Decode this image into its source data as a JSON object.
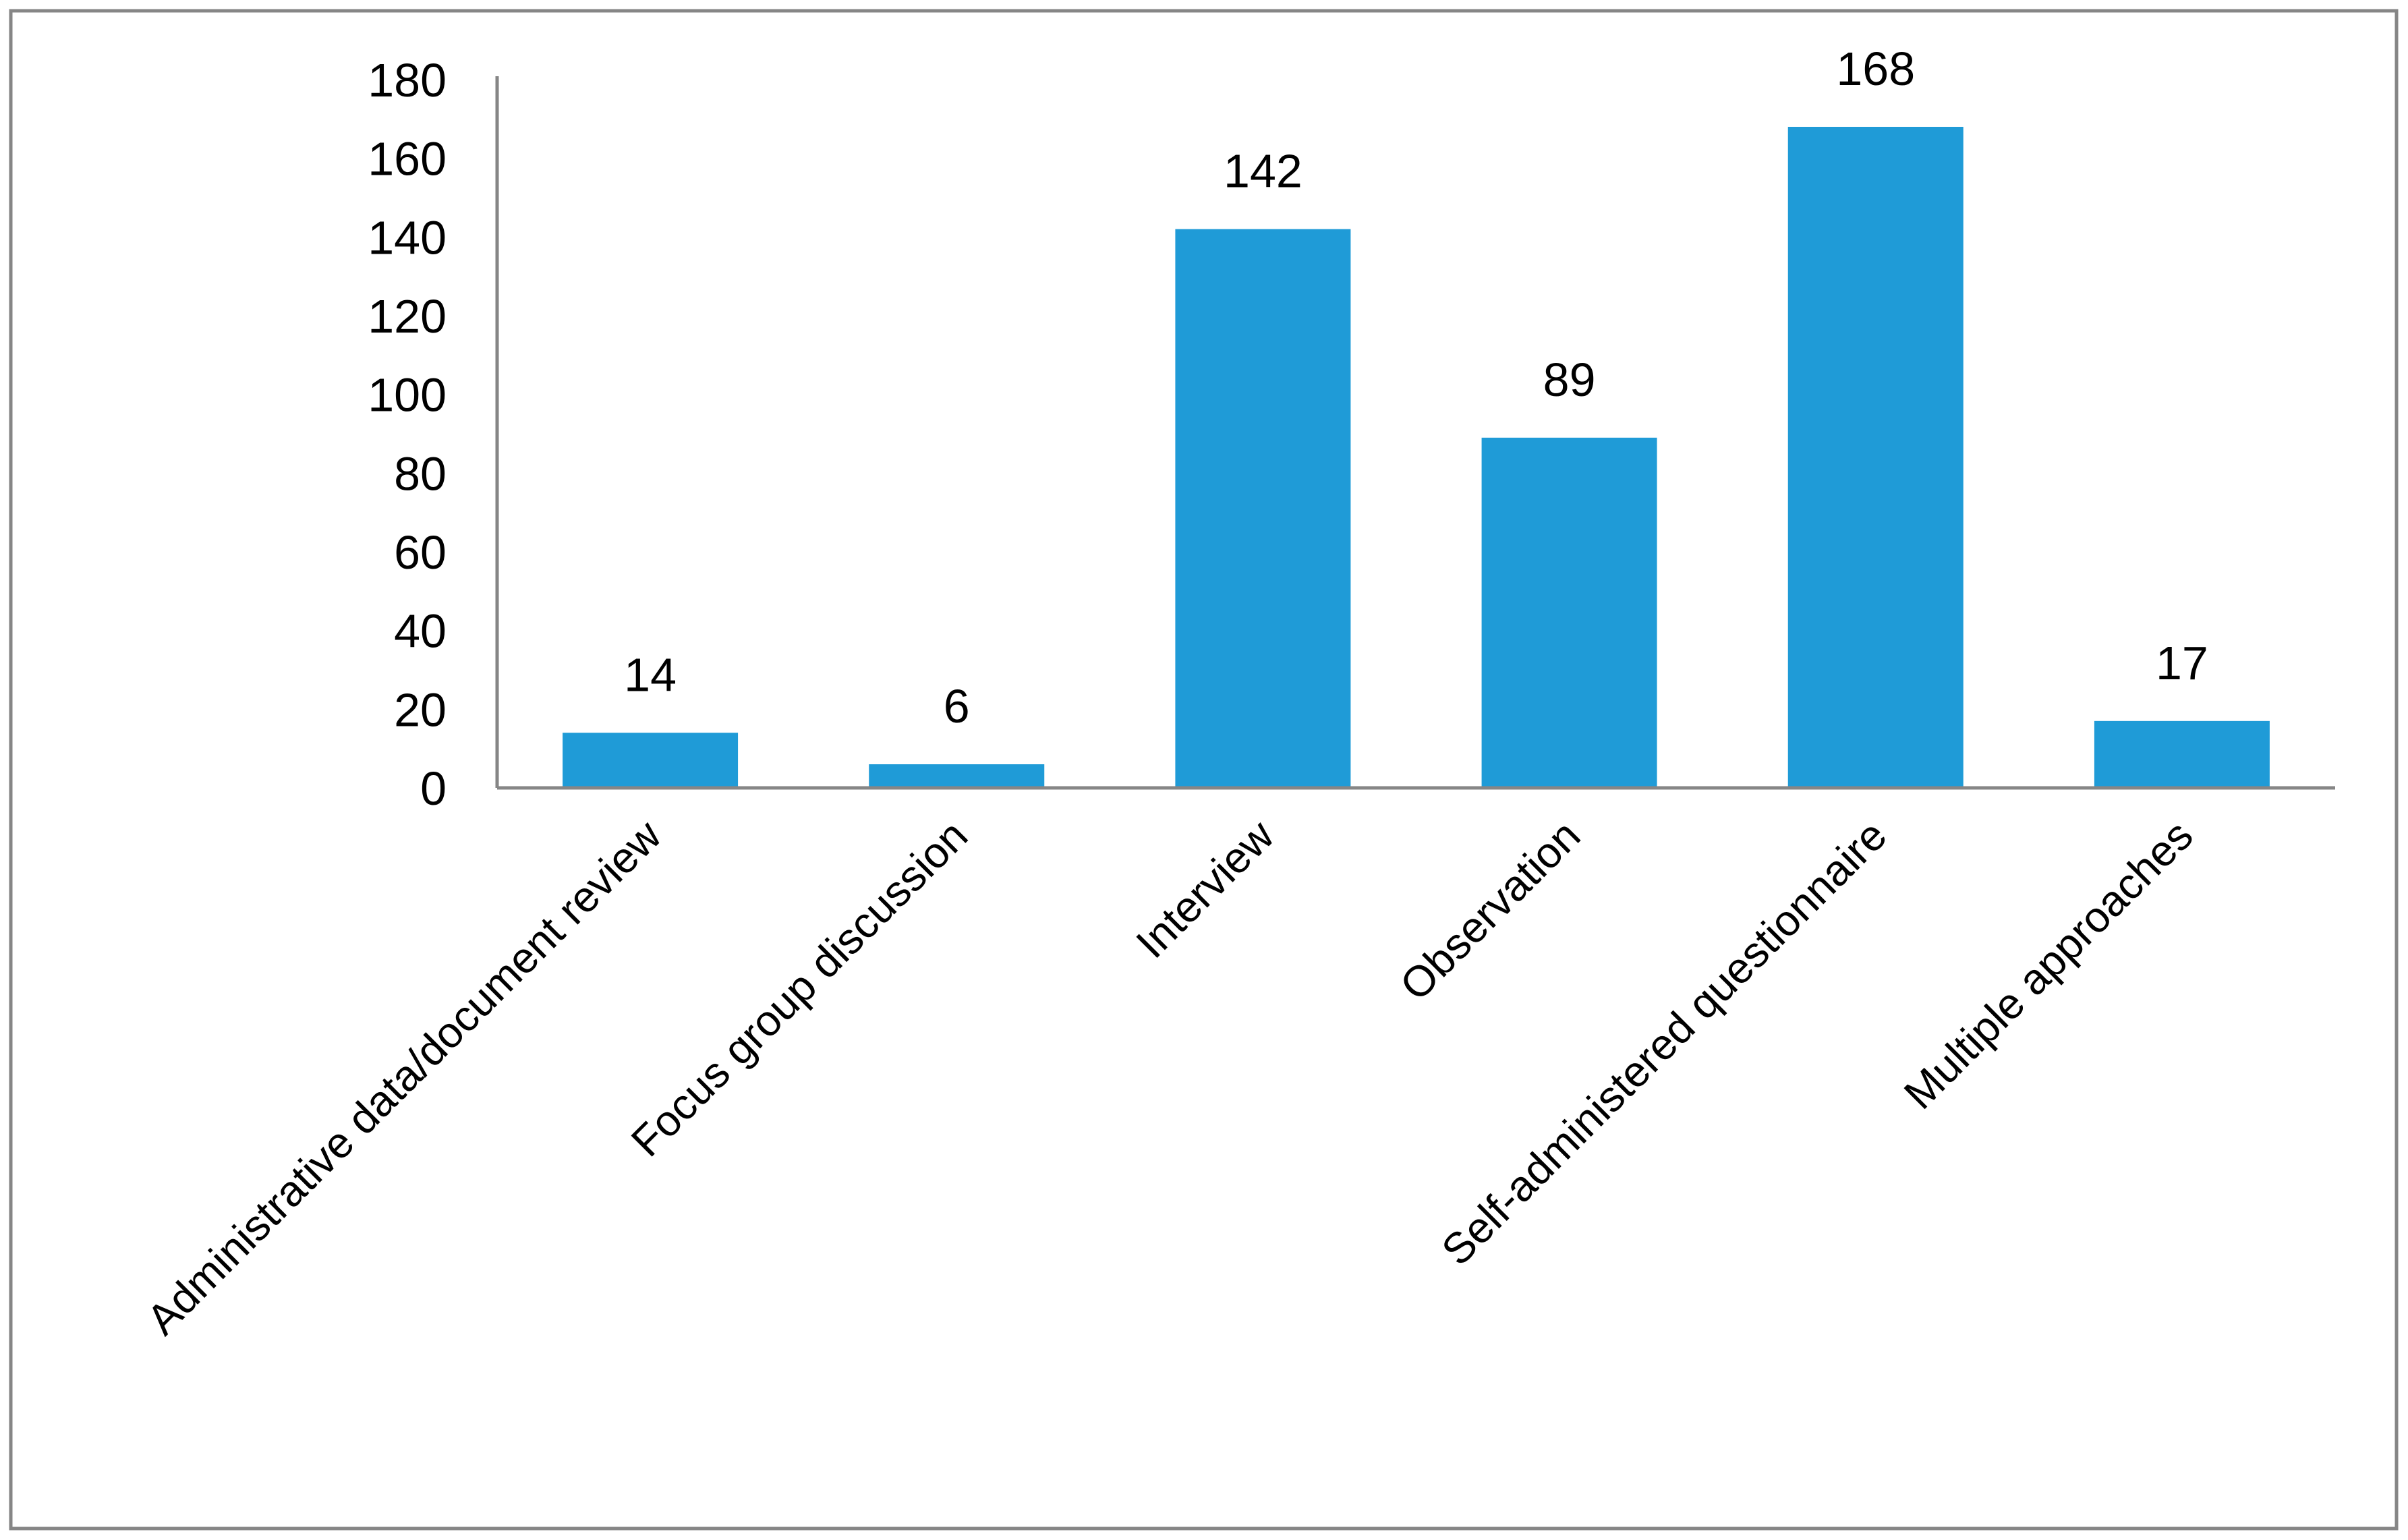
{
  "chart_data": {
    "type": "bar",
    "title": "",
    "xlabel": "",
    "ylabel": "",
    "categories": [
      "Administrative data/document review",
      "Focus group discussion",
      "Interview",
      "Observation",
      "Self-administered questionnaire",
      "Multiple approaches"
    ],
    "values": [
      14,
      6,
      142,
      89,
      168,
      17
    ],
    "ylim": [
      0,
      180
    ],
    "yticks": [
      0,
      20,
      40,
      60,
      80,
      100,
      120,
      140,
      160,
      180
    ],
    "grid": false,
    "legend": "none",
    "data_labels": true,
    "bar_color": "#1F9BD7",
    "axis_color": "#868686"
  }
}
